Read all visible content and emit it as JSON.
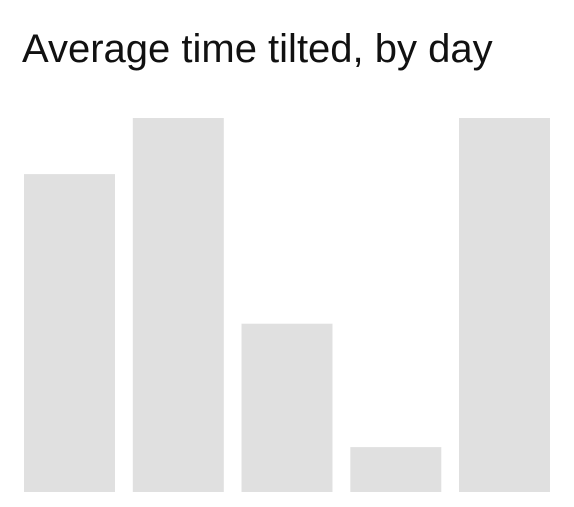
{
  "chart_data": {
    "type": "bar",
    "title": "Average time tilted, by day",
    "xlabel": "",
    "ylabel": "",
    "categories": [
      "",
      "",
      "",
      "",
      ""
    ],
    "values": [
      85,
      100,
      45,
      12,
      100
    ],
    "ylim": [
      0,
      100
    ],
    "grid": false,
    "legend": "none",
    "bar_color": "#e0e0e0"
  }
}
